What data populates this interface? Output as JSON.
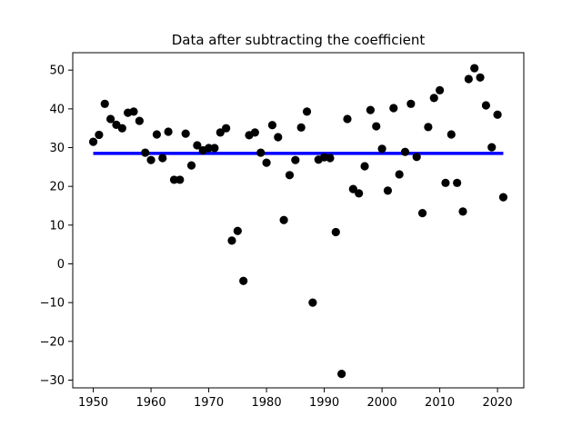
{
  "chart_data": {
    "type": "scatter",
    "title": "Data after subtracting the coefficient",
    "xlabel": "",
    "ylabel": "",
    "xlim": [
      1946.45,
      2024.55
    ],
    "ylim": [
      -32,
      54.5
    ],
    "xticks": [
      1950,
      1960,
      1970,
      1980,
      1990,
      2000,
      2010,
      2020
    ],
    "yticks": [
      -30,
      -20,
      -10,
      0,
      10,
      20,
      30,
      40,
      50
    ],
    "grid": false,
    "legend": "none",
    "series": [
      {
        "kind": "scatter",
        "color": "#000000",
        "points": [
          [
            1950,
            31.5
          ],
          [
            1951,
            33.3
          ],
          [
            1952,
            41.3
          ],
          [
            1953,
            37.4
          ],
          [
            1954,
            35.9
          ],
          [
            1955,
            35.0
          ],
          [
            1956,
            39.0
          ],
          [
            1957,
            39.3
          ],
          [
            1958,
            36.9
          ],
          [
            1959,
            28.7
          ],
          [
            1960,
            26.8
          ],
          [
            1961,
            33.4
          ],
          [
            1962,
            27.3
          ],
          [
            1963,
            34.1
          ],
          [
            1964,
            21.7
          ],
          [
            1965,
            21.7
          ],
          [
            1966,
            33.6
          ],
          [
            1967,
            25.4
          ],
          [
            1968,
            30.6
          ],
          [
            1969,
            29.3
          ],
          [
            1970,
            29.9
          ],
          [
            1971,
            29.9
          ],
          [
            1972,
            33.9
          ],
          [
            1973,
            35.0
          ],
          [
            1974,
            6.0
          ],
          [
            1975,
            8.5
          ],
          [
            1976,
            -4.4
          ],
          [
            1977,
            33.2
          ],
          [
            1978,
            33.9
          ],
          [
            1979,
            28.7
          ],
          [
            1980,
            26.1
          ],
          [
            1981,
            35.8
          ],
          [
            1982,
            32.7
          ],
          [
            1983,
            11.3
          ],
          [
            1984,
            22.9
          ],
          [
            1985,
            26.8
          ],
          [
            1986,
            35.2
          ],
          [
            1987,
            39.3
          ],
          [
            1988,
            -10.0
          ],
          [
            1989,
            26.9
          ],
          [
            1990,
            27.5
          ],
          [
            1991,
            27.3
          ],
          [
            1992,
            8.2
          ],
          [
            1993,
            -28.4
          ],
          [
            1994,
            37.4
          ],
          [
            1995,
            19.3
          ],
          [
            1996,
            18.2
          ],
          [
            1997,
            25.2
          ],
          [
            1998,
            39.7
          ],
          [
            1999,
            35.5
          ],
          [
            2000,
            29.7
          ],
          [
            2001,
            18.9
          ],
          [
            2002,
            40.2
          ],
          [
            2003,
            23.1
          ],
          [
            2004,
            28.9
          ],
          [
            2005,
            41.3
          ],
          [
            2006,
            27.6
          ],
          [
            2007,
            13.1
          ],
          [
            2008,
            35.3
          ],
          [
            2009,
            42.8
          ],
          [
            2010,
            44.8
          ],
          [
            2011,
            20.9
          ],
          [
            2012,
            33.4
          ],
          [
            2013,
            20.9
          ],
          [
            2014,
            13.5
          ],
          [
            2015,
            47.7
          ],
          [
            2016,
            50.5
          ],
          [
            2017,
            48.1
          ],
          [
            2018,
            40.9
          ],
          [
            2019,
            30.1
          ],
          [
            2020,
            38.5
          ],
          [
            2021,
            17.2
          ]
        ]
      },
      {
        "kind": "line",
        "color": "#0000ff",
        "points": [
          [
            1950,
            28.5
          ],
          [
            2021,
            28.5
          ]
        ]
      }
    ]
  }
}
